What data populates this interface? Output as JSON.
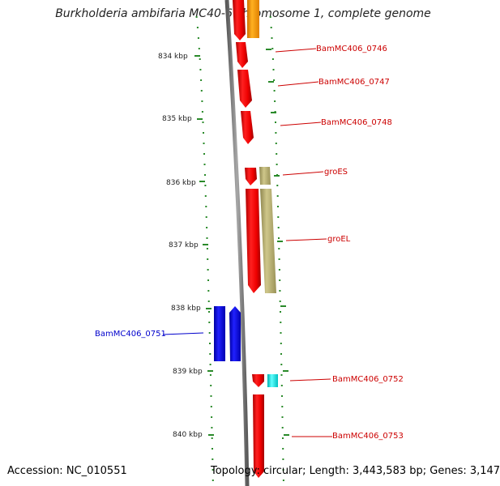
{
  "title": "Burkholderia ambifaria MC40-6 chromosome 1, complete genome",
  "footer": {
    "accession": "Accession: NC_010551",
    "topology": "Topology: circular; Length: 3,443,583 bp; Genes: 3,147"
  },
  "colors": {
    "backbone": "#808080",
    "tick_dots": "#2a8a2a",
    "forward_gene": "#ee0000",
    "reverse_gene": "#0000ee",
    "label_forward": "#cc0000",
    "label_reverse": "#0000cc",
    "operon_olive": "#b5ad6e",
    "orange": "#ff9a00",
    "cyan": "#00e0e0"
  },
  "position_labels": [
    "834 kbp",
    "835 kbp",
    "836 kbp",
    "837 kbp",
    "838 kbp",
    "839 kbp",
    "840 kbp"
  ],
  "genes": [
    {
      "label": "BamMC406_0746",
      "strand": "forward"
    },
    {
      "label": "BamMC406_0747",
      "strand": "forward"
    },
    {
      "label": "BamMC406_0748",
      "strand": "forward"
    },
    {
      "label": "groES",
      "strand": "forward"
    },
    {
      "label": "groEL",
      "strand": "forward"
    },
    {
      "label": "BamMC406_0751",
      "strand": "reverse"
    },
    {
      "label": "BamMC406_0752",
      "strand": "forward"
    },
    {
      "label": "BamMC406_0753",
      "strand": "forward"
    }
  ]
}
